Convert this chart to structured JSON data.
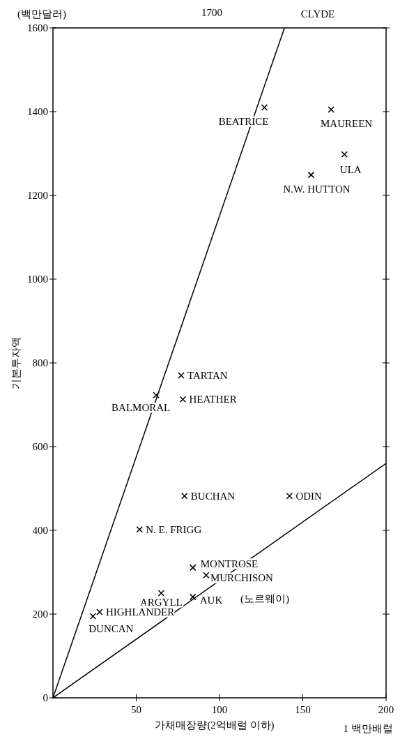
{
  "chart_data": {
    "type": "scatter",
    "xlabel": "가채매장량(2억배럴 이하)",
    "ylabel": "기본투자액",
    "xlim": [
      0,
      200
    ],
    "ylim": [
      0,
      1600
    ],
    "xticks": [
      50,
      100,
      150,
      200
    ],
    "yticks": [
      0,
      200,
      400,
      600,
      800,
      1000,
      1200,
      1400,
      1600
    ],
    "grid": false,
    "line_style": "solid",
    "series": [
      {
        "color": "#000000",
        "marker": "cross",
        "x": [
          127,
          167,
          175,
          155,
          77,
          62,
          78,
          79,
          142,
          52,
          84,
          92,
          65,
          84,
          28,
          24
        ],
        "values": [
          1410,
          1405,
          1298,
          1249,
          770,
          723,
          713,
          482,
          482,
          402,
          311,
          293,
          250,
          241,
          205,
          195
        ]
      },
      {
        "type": "line",
        "color": "#000000",
        "x": [
          0,
          139
        ],
        "values": [
          0,
          1600
        ]
      },
      {
        "type": "line",
        "color": "#000000",
        "x": [
          0,
          200
        ],
        "values": [
          0,
          560
        ]
      }
    ],
    "annotations": [
      "(백만달러)",
      "1700",
      "CLYDE",
      "1 백만배럴",
      "(노르웨이)",
      {
        "text": "BEATRICE",
        "x": 127,
        "y": 1410
      },
      {
        "text": "MAUREEN",
        "x": 167,
        "y": 1405
      },
      {
        "text": "ULA",
        "x": 175,
        "y": 1298
      },
      {
        "text": "N.W. HUTTON",
        "x": 155,
        "y": 1249
      },
      {
        "text": "TARTAN",
        "x": 77,
        "y": 770
      },
      {
        "text": "BALMORAL",
        "x": 62,
        "y": 723
      },
      {
        "text": "HEATHER",
        "x": 78,
        "y": 713
      },
      {
        "text": "BUCHAN",
        "x": 79,
        "y": 482
      },
      {
        "text": "ODIN",
        "x": 142,
        "y": 482
      },
      {
        "text": "N. E. FRIGG",
        "x": 52,
        "y": 402
      },
      {
        "text": "MONTROSE",
        "x": 84,
        "y": 311
      },
      {
        "text": "MURCHISON",
        "x": 92,
        "y": 293
      },
      {
        "text": "ARGYLL",
        "x": 65,
        "y": 250
      },
      {
        "text": "AUK",
        "x": 84,
        "y": 241
      },
      {
        "text": "HIGHLANDER",
        "x": 28,
        "y": 205
      },
      {
        "text": "DUNCAN",
        "x": 24,
        "y": 195
      }
    ]
  }
}
